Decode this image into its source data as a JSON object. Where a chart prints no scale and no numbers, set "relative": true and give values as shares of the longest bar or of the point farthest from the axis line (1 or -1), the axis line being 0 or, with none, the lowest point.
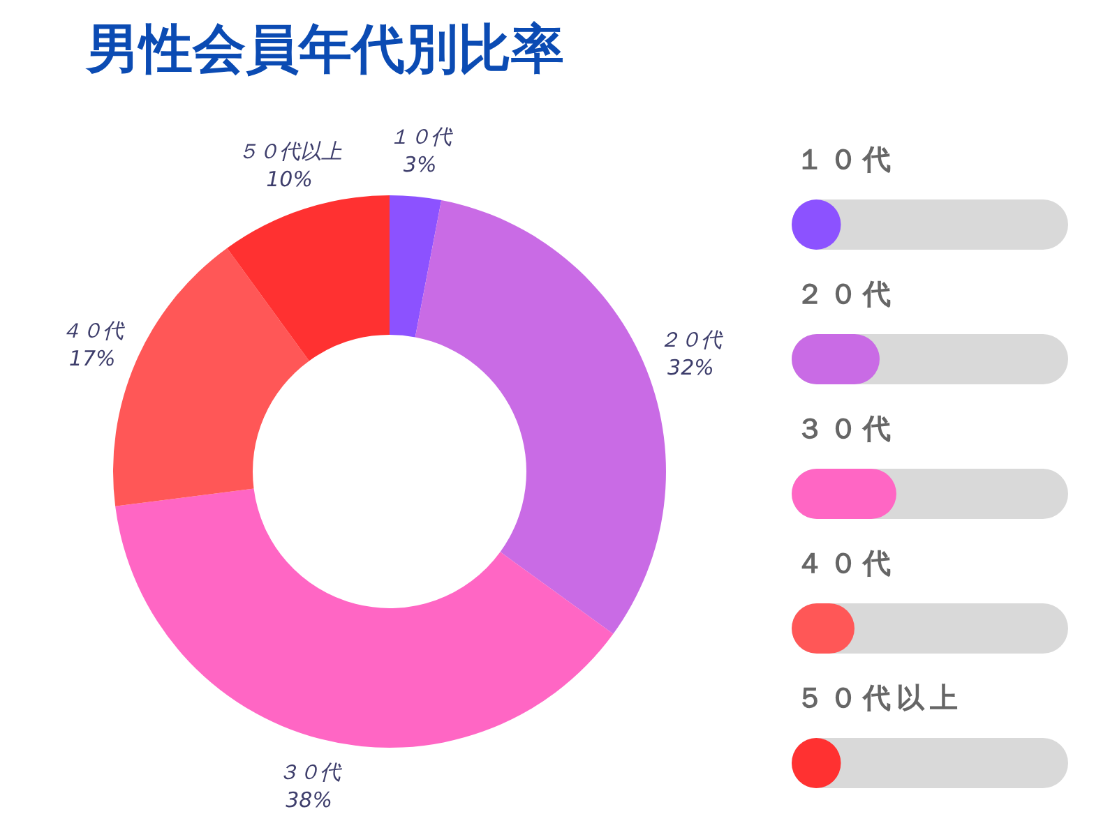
{
  "chart_data": [
    {
      "type": "donut",
      "title": "男性会員年代別比率",
      "categories": [
        "１０代",
        "２０代",
        "３０代",
        "４０代",
        "５０代以上"
      ],
      "values": [
        3,
        32,
        38,
        17,
        10
      ],
      "colors": [
        "#8c52ff",
        "#c96be5",
        "#ff66c4",
        "#ff5757",
        "#ff3131"
      ],
      "value_labels": [
        "3%",
        "32%",
        "38%",
        "17%",
        "10%"
      ]
    },
    {
      "type": "bar",
      "orientation": "horizontal",
      "relative": true,
      "categories": [
        "１０代",
        "２０代",
        "３０代",
        "４０代",
        "５０代以上"
      ],
      "values": [
        0.47,
        0.84,
        1,
        0.6,
        0.47
      ],
      "colors": [
        "#8c52ff",
        "#c96be5",
        "#ff66c4",
        "#ff5757",
        "#ff3131"
      ]
    }
  ]
}
